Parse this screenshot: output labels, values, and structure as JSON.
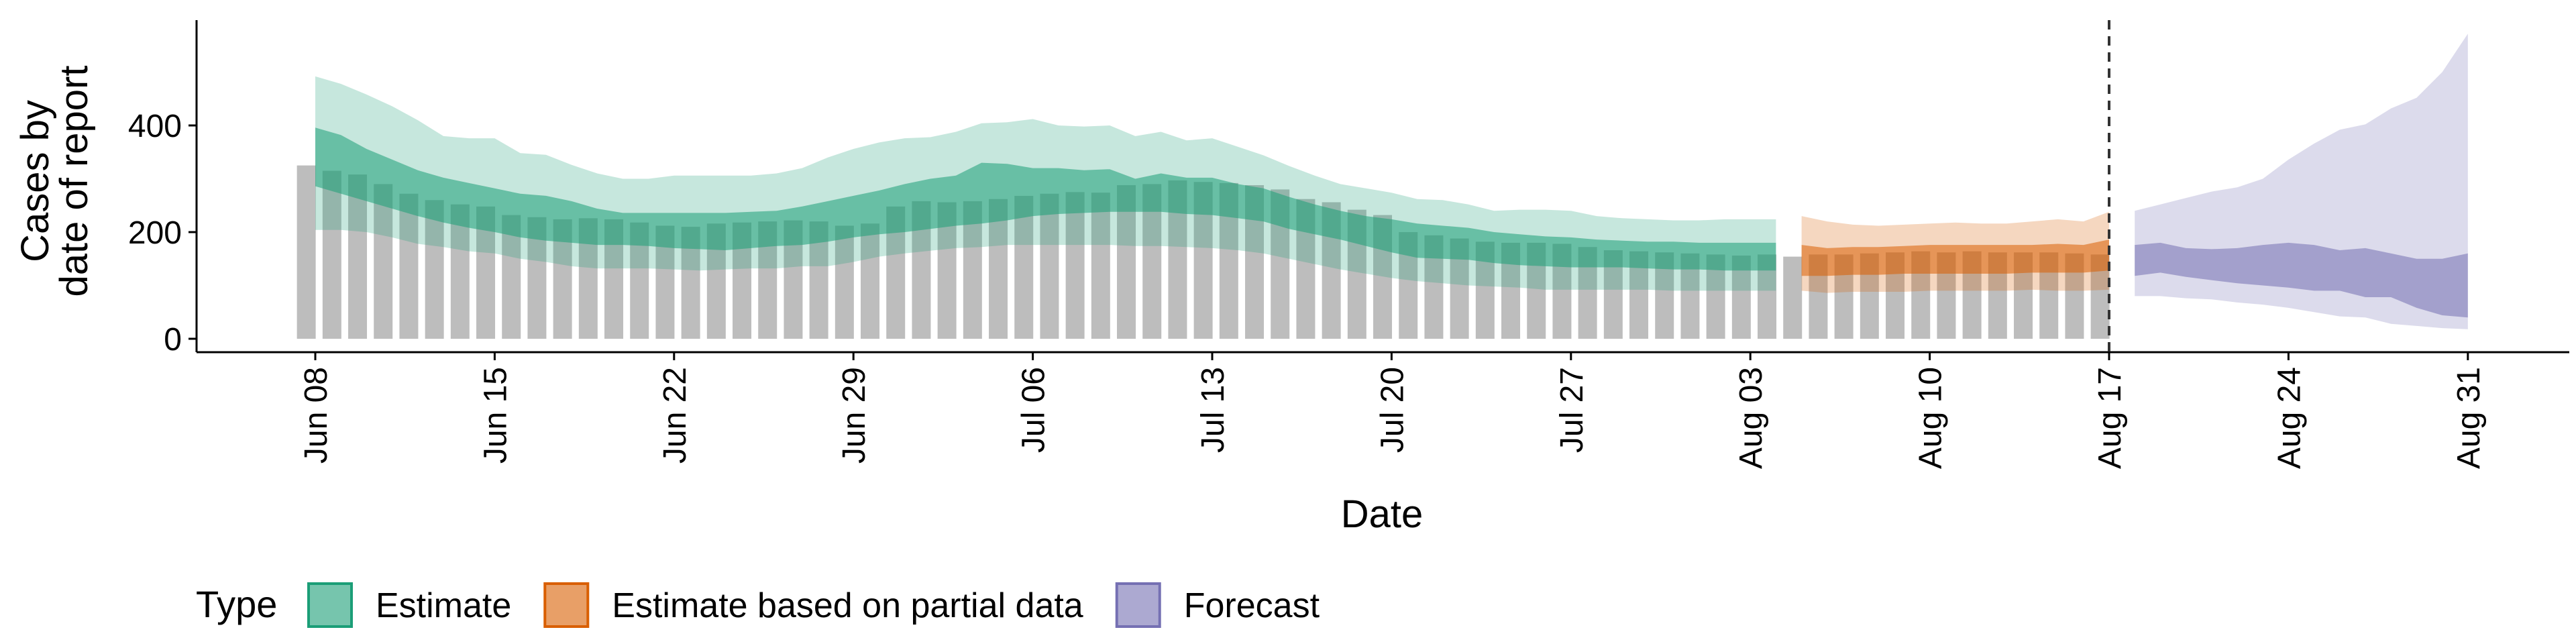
{
  "chart_data": {
    "type": "bar",
    "xlabel": "Date",
    "ylabel_lines": [
      "Cases by",
      "date of report"
    ],
    "ylim": [
      0,
      600
    ],
    "yticks": [
      0,
      200,
      400
    ],
    "xticks": [
      {
        "label": "Jun 08",
        "day": 0
      },
      {
        "label": "Jun 15",
        "day": 7
      },
      {
        "label": "Jun 22",
        "day": 14
      },
      {
        "label": "Jun 29",
        "day": 21
      },
      {
        "label": "Jul 06",
        "day": 28
      },
      {
        "label": "Jul 13",
        "day": 35
      },
      {
        "label": "Jul 20",
        "day": 42
      },
      {
        "label": "Jul 27",
        "day": 49
      },
      {
        "label": "Aug 03",
        "day": 56
      },
      {
        "label": "Aug 10",
        "day": 63
      },
      {
        "label": "Aug 17",
        "day": 70
      },
      {
        "label": "Aug 24",
        "day": 77
      },
      {
        "label": "Aug 31",
        "day": 84
      }
    ],
    "reference_line": {
      "label": "Aug 17",
      "day": 70,
      "style": "dashed"
    },
    "legend": {
      "title": "Type",
      "position": "bottom-left",
      "items": [
        {
          "name": "Estimate",
          "color": "#1B9E77"
        },
        {
          "name": "Estimate based on partial data",
          "color": "#D95F02"
        },
        {
          "name": "Forecast",
          "color": "#7570B3"
        }
      ]
    },
    "bars": {
      "color": "#BDBDBD",
      "start_day": -0.35,
      "values": [
        325,
        315,
        308,
        290,
        272,
        260,
        252,
        248,
        232,
        228,
        224,
        226,
        224,
        218,
        212,
        210,
        216,
        218,
        220,
        222,
        220,
        212,
        216,
        248,
        258,
        256,
        258,
        262,
        268,
        272,
        275,
        274,
        288,
        290,
        297,
        294,
        292,
        288,
        280,
        262,
        256,
        242,
        232,
        200,
        194,
        188,
        182,
        180,
        180,
        178,
        172,
        166,
        164,
        162,
        160,
        158,
        156,
        158,
        154,
        158,
        158,
        160,
        162,
        164,
        162,
        164,
        162,
        162,
        162,
        160,
        158
      ]
    },
    "series": [
      {
        "name": "Estimate",
        "color": "#1B9E77",
        "x": [
          0,
          1,
          2,
          3,
          4,
          5,
          6,
          7,
          8,
          9,
          10,
          11,
          12,
          13,
          14,
          15,
          16,
          17,
          18,
          19,
          20,
          21,
          22,
          23,
          24,
          25,
          26,
          27,
          28,
          29,
          30,
          31,
          32,
          33,
          34,
          35,
          36,
          37,
          38,
          39,
          40,
          41,
          42,
          43,
          44,
          45,
          46,
          47,
          48,
          49,
          50,
          51,
          52,
          53,
          54,
          55,
          56,
          57
        ],
        "outer_upper": [
          492,
          478,
          458,
          436,
          410,
          380,
          376,
          376,
          348,
          345,
          326,
          310,
          300,
          300,
          306,
          306,
          306,
          306,
          310,
          320,
          340,
          356,
          368,
          376,
          378,
          388,
          404,
          406,
          412,
          400,
          398,
          400,
          380,
          388,
          372,
          376,
          360,
          344,
          324,
          306,
          290,
          282,
          274,
          262,
          260,
          252,
          240,
          242,
          242,
          240,
          230,
          226,
          224,
          222,
          222,
          224,
          224,
          224
        ],
        "outer_lower": [
          204,
          204,
          200,
          190,
          178,
          172,
          164,
          160,
          150,
          144,
          136,
          132,
          132,
          132,
          130,
          128,
          130,
          132,
          132,
          136,
          136,
          144,
          154,
          160,
          165,
          170,
          172,
          176,
          176,
          176,
          176,
          176,
          174,
          174,
          172,
          170,
          166,
          160,
          150,
          140,
          130,
          122,
          114,
          108,
          104,
          100,
          98,
          96,
          92,
          92,
          92,
          92,
          92,
          90,
          90,
          90,
          90,
          90
        ],
        "inner_upper": [
          396,
          382,
          356,
          336,
          316,
          302,
          292,
          282,
          272,
          268,
          258,
          244,
          236,
          236,
          236,
          236,
          236,
          238,
          240,
          248,
          258,
          268,
          278,
          290,
          300,
          306,
          330,
          328,
          320,
          320,
          316,
          318,
          300,
          310,
          302,
          302,
          290,
          282,
          266,
          252,
          240,
          230,
          224,
          216,
          212,
          208,
          200,
          196,
          192,
          190,
          186,
          184,
          182,
          182,
          180,
          180,
          180,
          180
        ],
        "inner_lower": [
          286,
          272,
          258,
          244,
          230,
          218,
          208,
          200,
          190,
          184,
          180,
          176,
          176,
          174,
          170,
          168,
          166,
          170,
          174,
          176,
          182,
          190,
          196,
          200,
          206,
          212,
          216,
          222,
          230,
          234,
          236,
          238,
          238,
          238,
          234,
          232,
          226,
          220,
          206,
          196,
          186,
          174,
          162,
          152,
          150,
          148,
          142,
          138,
          136,
          134,
          134,
          134,
          132,
          130,
          130,
          128,
          128,
          128
        ]
      },
      {
        "name": "Estimate based on partial data",
        "color": "#D95F02",
        "x": [
          58,
          59,
          60,
          61,
          62,
          63,
          64,
          65,
          66,
          67,
          68,
          69,
          70
        ],
        "outer_upper": [
          230,
          220,
          214,
          212,
          214,
          216,
          218,
          216,
          216,
          220,
          224,
          220,
          238
        ],
        "outer_lower": [
          90,
          86,
          88,
          88,
          88,
          90,
          90,
          90,
          90,
          92,
          90,
          90,
          92
        ],
        "inner_upper": [
          176,
          170,
          172,
          172,
          174,
          176,
          176,
          176,
          176,
          176,
          178,
          176,
          186
        ],
        "inner_lower": [
          118,
          118,
          120,
          120,
          122,
          122,
          122,
          122,
          122,
          124,
          124,
          124,
          128
        ]
      },
      {
        "name": "Forecast",
        "color": "#7570B3",
        "x": [
          71,
          72,
          73,
          74,
          75,
          76,
          77,
          78,
          79,
          80,
          81,
          82,
          83,
          84
        ],
        "outer_upper": [
          240,
          252,
          264,
          276,
          284,
          300,
          336,
          366,
          392,
          402,
          432,
          452,
          500,
          572
        ],
        "outer_lower": [
          80,
          80,
          76,
          74,
          68,
          64,
          58,
          50,
          42,
          40,
          28,
          24,
          20,
          18
        ],
        "inner_upper": [
          176,
          180,
          170,
          168,
          170,
          176,
          180,
          176,
          166,
          170,
          160,
          150,
          150,
          160
        ],
        "inner_lower": [
          118,
          124,
          116,
          110,
          104,
          100,
          96,
          90,
          90,
          78,
          78,
          58,
          44,
          40
        ]
      }
    ]
  }
}
